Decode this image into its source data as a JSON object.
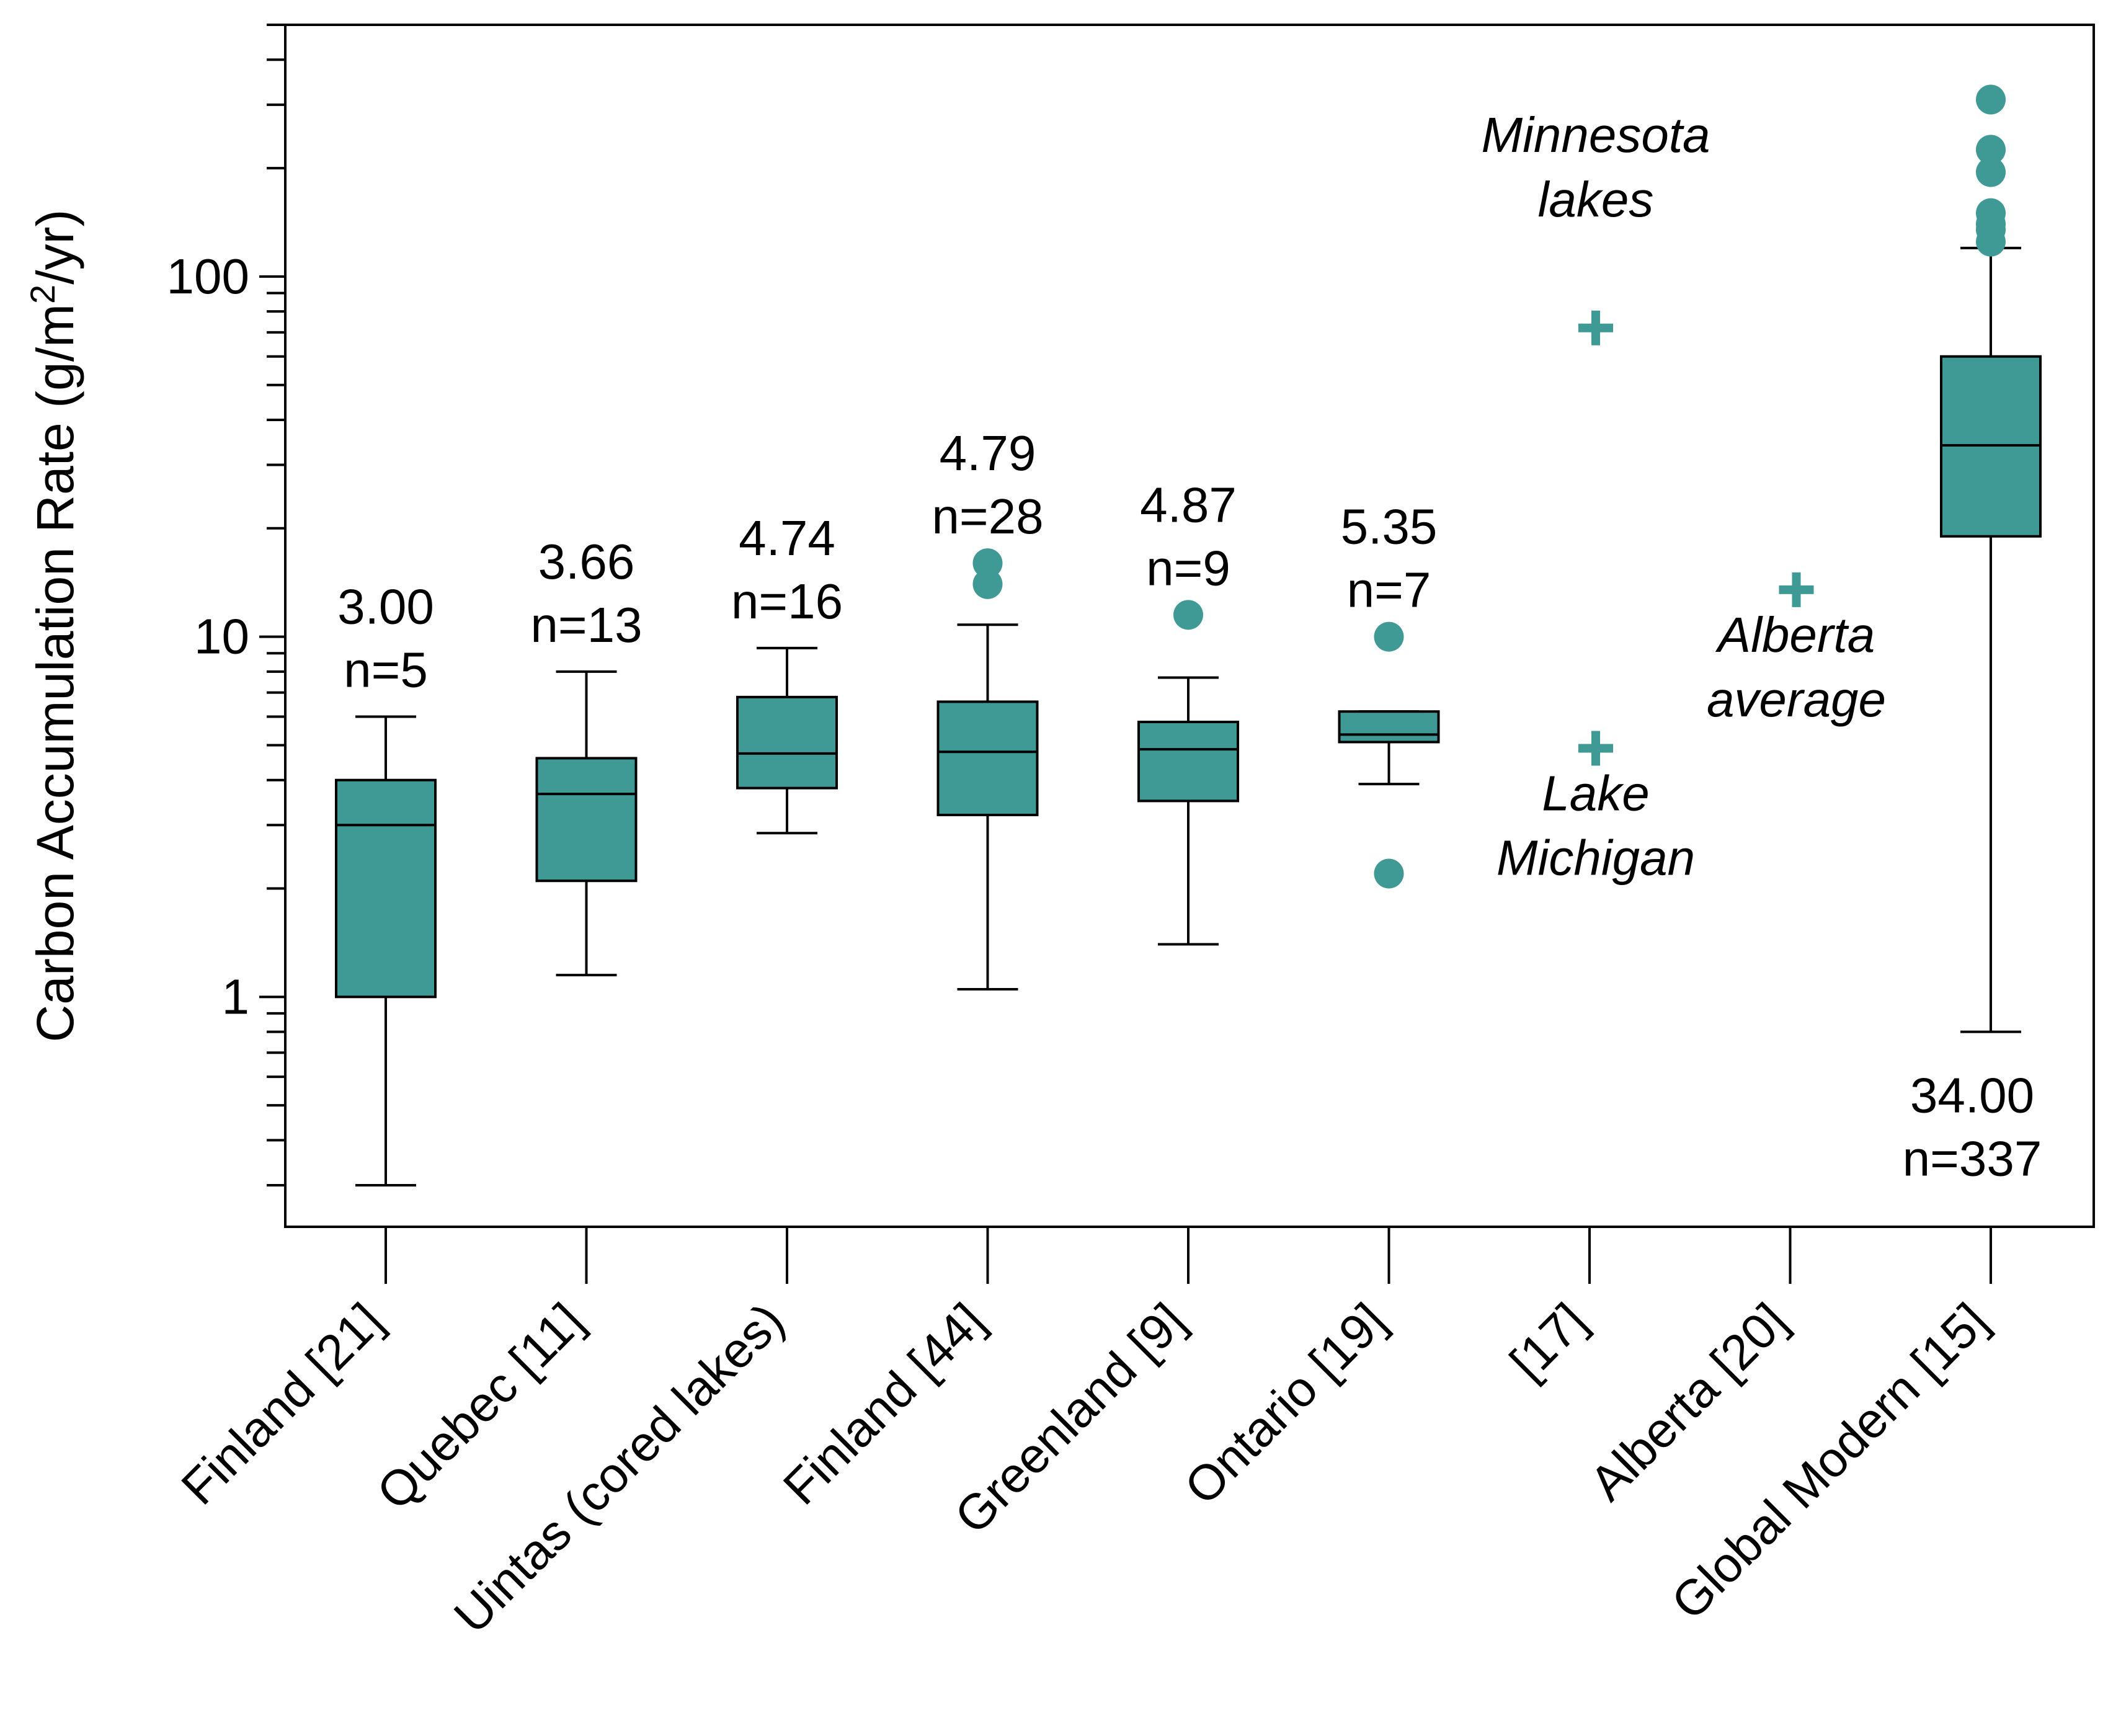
{
  "chart_data": {
    "type": "box",
    "title": "",
    "ylabel": "Carbon Accumulation  Rate (g/m²/yr)",
    "ylabel_parts": {
      "pre": "Carbon Accumulation  Rate (g/m",
      "sup": "2",
      "post": "/yr)"
    },
    "yscale": "log",
    "ylim": [
      0.23,
      500
    ],
    "yticks": [
      {
        "value": 1,
        "label": "1"
      },
      {
        "value": 10,
        "label": "10"
      },
      {
        "value": 100,
        "label": "100"
      }
    ],
    "categories": [
      "Finland [21]",
      "Quebec [11]",
      "Uintas (cored lakes)",
      "Finland [44]",
      "Greenland [9]",
      "Ontario [19]",
      "[17]",
      "Alberta [20]",
      "Global Modern [15]"
    ],
    "boxes": [
      {
        "category": "Finland [21]",
        "min": 0.3,
        "q1": 1.0,
        "median": 3.0,
        "q3": 4.0,
        "max": 6.0,
        "outliers": [],
        "median_label": "3.00",
        "n_label": "n=5"
      },
      {
        "category": "Quebec [11]",
        "min": 1.15,
        "q1": 2.1,
        "median": 3.66,
        "q3": 4.6,
        "max": 8.0,
        "outliers": [],
        "median_label": "3.66",
        "n_label": "n=13"
      },
      {
        "category": "Uintas (cored lakes)",
        "min": 2.85,
        "q1": 3.8,
        "median": 4.74,
        "q3": 6.8,
        "max": 9.3,
        "outliers": [],
        "median_label": "4.74",
        "n_label": "n=16"
      },
      {
        "category": "Finland [44]",
        "min": 1.05,
        "q1": 3.2,
        "median": 4.79,
        "q3": 6.6,
        "max": 10.8,
        "outliers": [
          14.0,
          16.0
        ],
        "median_label": "4.79",
        "n_label": "n=28"
      },
      {
        "category": "Greenland [9]",
        "min": 1.4,
        "q1": 3.5,
        "median": 4.87,
        "q3": 5.8,
        "max": 7.7,
        "outliers": [
          11.5
        ],
        "median_label": "4.87",
        "n_label": "n=9"
      },
      {
        "category": "Ontario [19]",
        "min": 3.9,
        "q1": 5.1,
        "median": 5.35,
        "q3": 6.2,
        "max": 6.2,
        "outliers": [
          10.0,
          2.2
        ],
        "median_label": "5.35",
        "n_label": "n=7"
      },
      {
        "category": "Global Modern [15]",
        "min": 0.8,
        "q1": 19.0,
        "median": 34.0,
        "q3": 60.0,
        "max": 120.0,
        "outliers": [
          125,
          135,
          140,
          150,
          195,
          225,
          310
        ],
        "median_label": "34.00",
        "n_label": "n=337"
      }
    ],
    "points": [
      {
        "category": "[17]",
        "value": 72,
        "label_lines": [
          "Minnesota",
          "lakes"
        ],
        "label_position": "above"
      },
      {
        "category": "[17]",
        "value": 4.9,
        "label_lines": [
          "Lake",
          "Michigan"
        ],
        "label_position": "below"
      },
      {
        "category": "Alberta [20]",
        "value": 13.5,
        "label_lines": [
          "Alberta",
          "average"
        ],
        "label_position": "below"
      }
    ],
    "color": "#3f9a96"
  }
}
